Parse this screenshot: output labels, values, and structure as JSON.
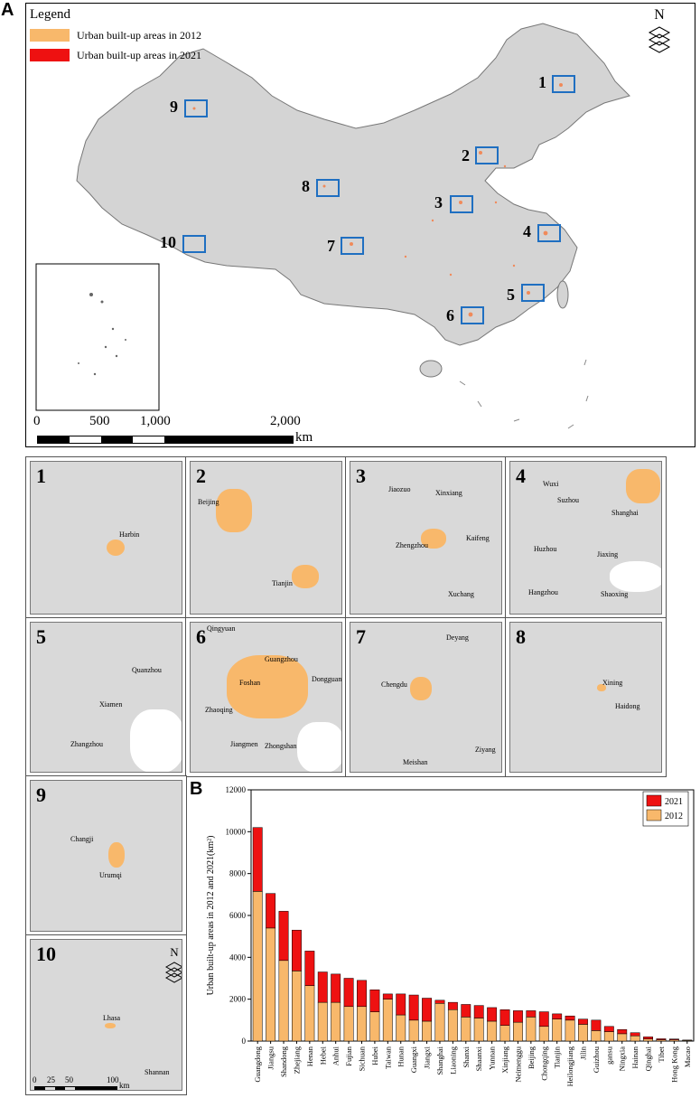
{
  "panel_a": {
    "letter": "A",
    "legend": {
      "title": "Legend",
      "items": [
        {
          "label": "Urban built-up areas in 2012",
          "color": "#f8b86b"
        },
        {
          "label": "Urban built-up areas in 2021",
          "color": "#ee1111"
        }
      ]
    },
    "north_arrow": "N",
    "scale_labels": [
      "0",
      "500",
      "1,000",
      "2,000"
    ],
    "scale_unit": "km",
    "box_labels": [
      "1",
      "2",
      "3",
      "4",
      "5",
      "6",
      "7",
      "8",
      "9",
      "10"
    ]
  },
  "insets": [
    {
      "num": "1",
      "cities": [
        "Harbin"
      ]
    },
    {
      "num": "2",
      "cities": [
        "Beijing",
        "Tianjin"
      ]
    },
    {
      "num": "3",
      "cities": [
        "Jiaozuo",
        "Xinxiang",
        "Zhengzhou",
        "Kaifeng",
        "Xuchang"
      ]
    },
    {
      "num": "4",
      "cities": [
        "Wuxi",
        "Suzhou",
        "Shanghai",
        "Huzhou",
        "Jiaxing",
        "Hangzhou",
        "Shaoxing"
      ]
    },
    {
      "num": "5",
      "cities": [
        "Quanzhou",
        "Xiamen",
        "Zhangzhou"
      ]
    },
    {
      "num": "6",
      "cities": [
        "Qingyuan",
        "Guangzhou",
        "Foshan",
        "Dongguan",
        "Zhaoqing",
        "Jiangmen",
        "Zhongshan"
      ]
    },
    {
      "num": "7",
      "cities": [
        "Deyang",
        "Chengdu",
        "Meishan",
        "Ziyang"
      ]
    },
    {
      "num": "8",
      "cities": [
        "Xining",
        "Haidong"
      ]
    },
    {
      "num": "9",
      "cities": [
        "Changji",
        "Urumqi"
      ]
    },
    {
      "num": "10",
      "cities": [
        "Lhasa",
        "Shannan"
      ],
      "north": "N",
      "scale_labels": [
        "0",
        "25",
        "50",
        "100"
      ],
      "scale_unit": "km"
    }
  ],
  "panel_b": {
    "letter": "B"
  },
  "chart_data": {
    "type": "bar",
    "stacked": true,
    "ylabel": "Urban built-up areas in 2012 and 2021(km²)",
    "ylim": [
      0,
      12000
    ],
    "yticks": [
      0,
      2000,
      4000,
      6000,
      8000,
      10000,
      12000
    ],
    "legend_position": "top-right",
    "categories": [
      "Guangdong",
      "Jiangsu",
      "Shandong",
      "Zhejiang",
      "Henan",
      "Hebei",
      "Anhui",
      "Fujian",
      "Sichuan",
      "Hubei",
      "Taiwan",
      "Hunan",
      "Guangxi",
      "Jiangxi",
      "Shanghai",
      "Liaoning",
      "Shanxi",
      "Shaanxi",
      "Yunnan",
      "Xinjiang",
      "Neimenggu",
      "Beijing",
      "Chongqing",
      "Tianjin",
      "Heilongjiang",
      "Jilin",
      "Guizhou",
      "gansu",
      "Ningxia",
      "Hainan",
      "Qinghai",
      "Tibet",
      "Hong Kong",
      "Macao"
    ],
    "series": [
      {
        "name": "2012",
        "color": "#f8b86b",
        "values": [
          7150,
          5400,
          3850,
          3350,
          2650,
          1850,
          1850,
          1650,
          1650,
          1400,
          2000,
          1250,
          1000,
          950,
          1800,
          1500,
          1150,
          1100,
          950,
          750,
          900,
          1150,
          700,
          1050,
          1000,
          800,
          500,
          450,
          350,
          250,
          100,
          60,
          60,
          30
        ]
      },
      {
        "name": "2021",
        "color": "#ee1111",
        "values": [
          3050,
          1650,
          2350,
          1950,
          1650,
          1450,
          1350,
          1350,
          1250,
          1050,
          250,
          1000,
          1200,
          1100,
          150,
          350,
          600,
          600,
          650,
          750,
          550,
          300,
          700,
          250,
          200,
          250,
          500,
          250,
          200,
          150,
          100,
          50,
          40,
          20
        ]
      }
    ],
    "legend_order": [
      "2021",
      "2012"
    ]
  }
}
